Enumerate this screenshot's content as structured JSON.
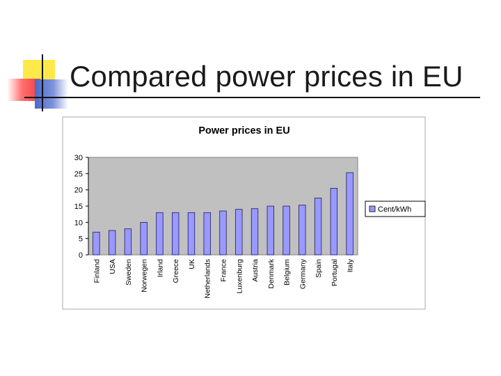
{
  "slide": {
    "title": "Compared power prices in EU"
  },
  "colors": {
    "bar_fill": "#9999ff",
    "bar_stroke": "#1a1a5e",
    "plot_bg": "#c0c0c0",
    "accent_yellow": "#ffe94a",
    "accent_red": "#f23c3c",
    "accent_blue": "#4a69c8"
  },
  "chart_data": {
    "type": "bar",
    "title": "Power prices in EU",
    "xlabel": "",
    "ylabel": "",
    "categories": [
      "Finland",
      "USA",
      "Sweden",
      "Norwegen",
      "Irland",
      "Greece",
      "UK",
      "Netherlands",
      "France",
      "Luxenburg",
      "Austria",
      "Denmark",
      "Belgium",
      "Germany",
      "Spain",
      "Portugal",
      "Italy"
    ],
    "series": [
      {
        "name": "Cent/kWh",
        "values": [
          7,
          7.5,
          8,
          10,
          13,
          13,
          13,
          13,
          13.5,
          14,
          14.2,
          15,
          15,
          15.3,
          17.5,
          20.5,
          25.3
        ]
      }
    ],
    "ylim": [
      0,
      30
    ],
    "yticks": [
      0,
      5,
      10,
      15,
      20,
      25,
      30
    ],
    "grid": false,
    "legend": "right"
  }
}
